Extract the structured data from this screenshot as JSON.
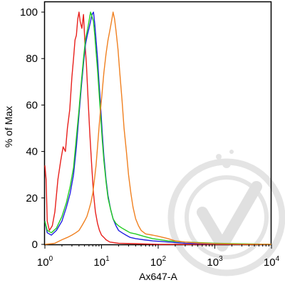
{
  "chart_data": {
    "type": "line",
    "xlabel": "Ax647-A",
    "ylabel": "% of Max",
    "xscale": "log",
    "xlim": [
      1,
      10000
    ],
    "ylim": [
      0,
      100
    ],
    "grid": false,
    "legend": "none",
    "y_ticks": [
      0,
      20,
      40,
      60,
      80,
      100
    ],
    "x_ticks": [
      {
        "value": 1,
        "base": "10",
        "exp": "0"
      },
      {
        "value": 10,
        "base": "10",
        "exp": "1"
      },
      {
        "value": 100,
        "base": "10",
        "exp": "2"
      },
      {
        "value": 1000,
        "base": "10",
        "exp": "3"
      },
      {
        "value": 10000,
        "base": "10",
        "exp": "4"
      }
    ],
    "series": [
      {
        "color": "#e8201c",
        "points": [
          [
            1.0,
            34
          ],
          [
            1.05,
            28
          ],
          [
            1.1,
            10
          ],
          [
            1.2,
            6
          ],
          [
            1.35,
            8
          ],
          [
            1.5,
            14
          ],
          [
            1.7,
            28
          ],
          [
            1.9,
            36
          ],
          [
            2.1,
            42
          ],
          [
            2.3,
            40
          ],
          [
            2.5,
            50
          ],
          [
            2.75,
            58
          ],
          [
            3.0,
            72
          ],
          [
            3.2,
            80
          ],
          [
            3.4,
            88
          ],
          [
            3.6,
            90
          ],
          [
            3.8,
            97
          ],
          [
            4.0,
            100
          ],
          [
            4.2,
            96
          ],
          [
            4.5,
            93
          ],
          [
            4.8,
            99
          ],
          [
            5.1,
            86
          ],
          [
            5.4,
            78
          ],
          [
            5.8,
            62
          ],
          [
            6.2,
            48
          ],
          [
            6.7,
            34
          ],
          [
            7.2,
            22
          ],
          [
            7.8,
            14
          ],
          [
            8.5,
            9
          ],
          [
            9.2,
            6
          ],
          [
            10,
            4
          ],
          [
            11,
            3
          ],
          [
            12,
            2
          ],
          [
            14,
            1
          ],
          [
            20,
            0.5
          ],
          [
            40,
            0.3
          ],
          [
            100,
            0
          ],
          [
            10000,
            0
          ]
        ]
      },
      {
        "color": "#2020e0",
        "points": [
          [
            1.0,
            10
          ],
          [
            1.1,
            5
          ],
          [
            1.3,
            4
          ],
          [
            1.6,
            6
          ],
          [
            2.0,
            10
          ],
          [
            2.4,
            16
          ],
          [
            2.8,
            22
          ],
          [
            3.2,
            30
          ],
          [
            3.6,
            42
          ],
          [
            4.0,
            56
          ],
          [
            4.4,
            68
          ],
          [
            4.8,
            78
          ],
          [
            5.2,
            86
          ],
          [
            5.6,
            90
          ],
          [
            6.0,
            93
          ],
          [
            6.4,
            96
          ],
          [
            6.8,
            99
          ],
          [
            7.2,
            100
          ],
          [
            7.6,
            95
          ],
          [
            8.0,
            88
          ],
          [
            8.5,
            80
          ],
          [
            9.0,
            70
          ],
          [
            9.6,
            60
          ],
          [
            10.3,
            48
          ],
          [
            11,
            38
          ],
          [
            12,
            28
          ],
          [
            13,
            21
          ],
          [
            14.5,
            15
          ],
          [
            16,
            11
          ],
          [
            18,
            8
          ],
          [
            20,
            6
          ],
          [
            23,
            5
          ],
          [
            27,
            4
          ],
          [
            32,
            3
          ],
          [
            40,
            2.5
          ],
          [
            55,
            2
          ],
          [
            80,
            1.5
          ],
          [
            150,
            1
          ],
          [
            300,
            0.5
          ],
          [
            1000,
            0.2
          ],
          [
            10000,
            0
          ]
        ]
      },
      {
        "color": "#22cc22",
        "points": [
          [
            1.0,
            10
          ],
          [
            1.1,
            6
          ],
          [
            1.3,
            5
          ],
          [
            1.6,
            7
          ],
          [
            2.0,
            12
          ],
          [
            2.4,
            18
          ],
          [
            2.8,
            25
          ],
          [
            3.2,
            33
          ],
          [
            3.6,
            46
          ],
          [
            4.0,
            58
          ],
          [
            4.4,
            70
          ],
          [
            4.8,
            80
          ],
          [
            5.2,
            88
          ],
          [
            5.6,
            92
          ],
          [
            6.0,
            96
          ],
          [
            6.4,
            100
          ],
          [
            6.8,
            98
          ],
          [
            7.2,
            96
          ],
          [
            7.6,
            90
          ],
          [
            8.0,
            83
          ],
          [
            8.5,
            75
          ],
          [
            9.0,
            66
          ],
          [
            9.6,
            56
          ],
          [
            10.3,
            45
          ],
          [
            11,
            36
          ],
          [
            12,
            27
          ],
          [
            13,
            20
          ],
          [
            14.5,
            15
          ],
          [
            16,
            11
          ],
          [
            18,
            9
          ],
          [
            20,
            8
          ],
          [
            23,
            7
          ],
          [
            27,
            6
          ],
          [
            32,
            5
          ],
          [
            40,
            4.5
          ],
          [
            55,
            3.5
          ],
          [
            80,
            2.5
          ],
          [
            150,
            1.5
          ],
          [
            300,
            1
          ],
          [
            1000,
            0.5
          ],
          [
            10000,
            0
          ]
        ]
      },
      {
        "color": "#f08020",
        "points": [
          [
            1.0,
            0
          ],
          [
            1.5,
            0.5
          ],
          [
            2.0,
            2
          ],
          [
            2.5,
            3
          ],
          [
            3.0,
            4
          ],
          [
            3.5,
            5
          ],
          [
            4.0,
            6
          ],
          [
            4.5,
            8
          ],
          [
            5.0,
            10
          ],
          [
            5.5,
            12
          ],
          [
            6.0,
            15
          ],
          [
            6.5,
            18
          ],
          [
            7.0,
            22
          ],
          [
            7.5,
            28
          ],
          [
            8.0,
            34
          ],
          [
            8.5,
            42
          ],
          [
            9.0,
            50
          ],
          [
            9.6,
            58
          ],
          [
            10.3,
            66
          ],
          [
            11,
            74
          ],
          [
            12,
            82
          ],
          [
            13,
            88
          ],
          [
            14,
            92
          ],
          [
            15,
            96
          ],
          [
            16,
            100
          ],
          [
            17,
            97
          ],
          [
            18,
            92
          ],
          [
            19.5,
            84
          ],
          [
            21,
            74
          ],
          [
            23,
            62
          ],
          [
            25,
            50
          ],
          [
            27.5,
            40
          ],
          [
            30,
            30
          ],
          [
            33,
            22
          ],
          [
            36,
            16
          ],
          [
            40,
            11
          ],
          [
            45,
            8
          ],
          [
            50,
            6
          ],
          [
            60,
            4.5
          ],
          [
            80,
            4
          ],
          [
            100,
            3.5
          ],
          [
            150,
            2.5
          ],
          [
            200,
            1.5
          ],
          [
            300,
            1
          ],
          [
            500,
            0.6
          ],
          [
            1000,
            0.3
          ],
          [
            3000,
            0.1
          ],
          [
            10000,
            0
          ]
        ]
      }
    ]
  }
}
